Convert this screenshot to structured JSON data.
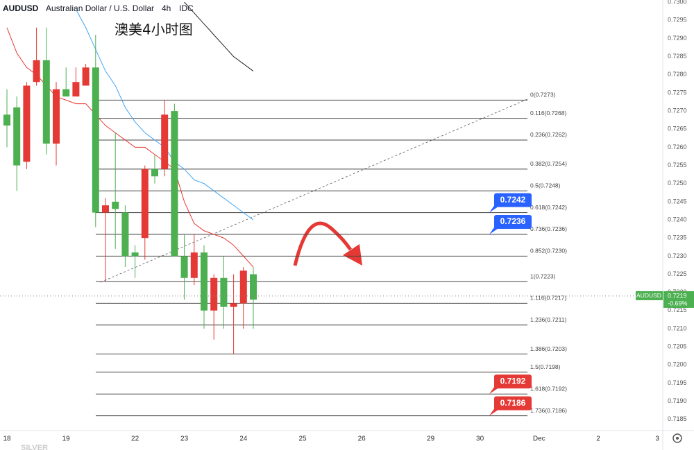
{
  "header": {
    "symbol": "AUDUSD",
    "name": "Australian Dollar / U.S. Dollar",
    "interval": "4h",
    "source": "IDC"
  },
  "watermark": "SILVER",
  "chart_data": {
    "type": "candlestick",
    "title": "澳美4小时图",
    "categories": [
      "18",
      null,
      null,
      null,
      null,
      null,
      "19",
      null,
      null,
      null,
      null,
      null,
      null,
      "22",
      null,
      null,
      null,
      null,
      "23",
      null,
      null,
      null,
      null,
      null,
      "24",
      null,
      null,
      null,
      null,
      null,
      "25",
      null,
      null,
      null,
      null,
      null,
      "26",
      null,
      null,
      null,
      null,
      null,
      null,
      "29",
      null,
      null,
      null,
      null,
      "30",
      null,
      null,
      null,
      null,
      null,
      "Dec",
      null,
      null,
      null,
      null,
      null,
      "2",
      null,
      null,
      null,
      null,
      null,
      "3"
    ],
    "open": [
      0.7269,
      0.7271,
      0.7256,
      0.7278,
      0.7284,
      0.7261,
      0.7276,
      0.7274,
      0.7277,
      0.7282,
      0.7242,
      0.7245,
      0.7242,
      0.7231,
      0.7235,
      0.7254,
      0.7254,
      0.727,
      0.723,
      0.7224,
      0.7231,
      0.7215,
      0.7224,
      0.7216,
      0.7217,
      0.7225,
      null,
      null,
      null,
      null,
      null,
      null,
      null,
      null,
      null,
      null,
      null,
      null,
      null,
      null,
      null,
      null,
      null,
      null,
      null,
      null,
      null,
      null,
      null,
      null,
      null,
      null,
      null,
      null,
      null,
      null,
      null,
      null,
      null,
      null,
      null,
      null,
      null,
      null,
      null,
      null,
      null
    ],
    "high": [
      0.7276,
      0.7274,
      0.7278,
      0.7293,
      0.7293,
      0.7278,
      0.7282,
      0.7282,
      0.7283,
      0.7291,
      0.7246,
      0.7264,
      0.7244,
      0.7233,
      0.7255,
      0.7258,
      0.7273,
      0.7272,
      0.7236,
      0.7236,
      0.7233,
      0.7225,
      0.723,
      0.7225,
      0.7227,
      0.7227,
      null,
      null,
      null,
      null,
      null,
      null,
      null,
      null,
      null,
      null,
      null,
      null,
      null,
      null,
      null,
      null,
      null,
      null,
      null,
      null,
      null,
      null,
      null,
      null,
      null,
      null,
      null,
      null,
      null,
      null,
      null,
      null,
      null,
      null,
      null,
      null,
      null,
      null,
      null,
      null,
      null
    ],
    "low": [
      0.726,
      0.7248,
      0.7254,
      0.7277,
      0.7258,
      0.7255,
      0.7274,
      0.7274,
      0.7277,
      0.7238,
      0.7223,
      0.7232,
      0.7227,
      0.7224,
      0.7229,
      0.725,
      0.7252,
      0.723,
      0.7218,
      0.7222,
      0.721,
      0.7207,
      0.721,
      0.7203,
      0.721,
      0.721,
      null,
      null,
      null,
      null,
      null,
      null,
      null,
      null,
      null,
      null,
      null,
      null,
      null,
      null,
      null,
      null,
      null,
      null,
      null,
      null,
      null,
      null,
      null,
      null,
      null,
      null,
      null,
      null,
      null,
      null,
      null,
      null,
      null,
      null,
      null,
      null,
      null,
      null,
      null,
      null,
      null
    ],
    "close": [
      0.7266,
      0.7255,
      0.7277,
      0.7284,
      0.7261,
      0.7276,
      0.7274,
      0.7278,
      0.7282,
      0.7242,
      0.7244,
      0.7243,
      0.723,
      0.723,
      0.7254,
      0.7252,
      0.7269,
      0.723,
      0.7224,
      0.7231,
      0.7215,
      0.7224,
      0.7216,
      0.7217,
      0.7226,
      0.7218,
      null,
      null,
      null,
      null,
      null,
      null,
      null,
      null,
      null,
      null,
      null,
      null,
      null,
      null,
      null,
      null,
      null,
      null,
      null,
      null,
      null,
      null,
      null,
      null,
      null,
      null,
      null,
      null,
      null,
      null,
      null,
      null,
      null,
      null,
      null,
      null,
      null,
      null,
      null,
      null,
      null
    ],
    "up_color": "#e53935",
    "down_color": "#4caf50",
    "series": [
      {
        "color": "#e53935",
        "values": [
          0.7293,
          0.7286,
          0.7282,
          0.728,
          0.7277,
          0.7274,
          0.7273,
          0.7272,
          0.7272,
          0.7269,
          0.7266,
          0.7264,
          0.7262,
          0.726,
          0.726,
          0.7258,
          0.7256,
          0.7254,
          0.7245,
          0.7239,
          0.7237,
          0.7236,
          0.7235,
          0.7233,
          0.723,
          0.7227,
          null,
          null,
          null,
          null,
          null,
          null,
          null,
          null,
          null,
          null,
          null,
          null,
          null,
          null,
          null,
          null,
          null,
          null,
          null,
          null,
          null,
          null,
          null,
          null,
          null,
          null,
          null,
          null,
          null,
          null,
          null,
          null,
          null,
          null,
          null,
          null,
          null,
          null,
          null,
          null,
          null
        ]
      },
      {
        "color": "#42a5f5",
        "values": [
          null,
          null,
          null,
          null,
          null,
          null,
          null,
          0.7298,
          0.7293,
          0.7287,
          0.7281,
          0.7277,
          0.7271,
          0.7267,
          0.7264,
          0.7262,
          0.726,
          0.7256,
          0.7254,
          0.7251,
          0.725,
          0.7248,
          0.7246,
          0.7244,
          0.7242,
          0.724,
          null,
          null,
          null,
          null,
          null,
          null,
          null,
          null,
          null,
          null,
          null,
          null,
          null,
          null,
          null,
          null,
          null,
          null,
          null,
          null,
          null,
          null,
          null,
          null,
          null,
          null,
          null,
          null,
          null,
          null,
          null,
          null,
          null,
          null,
          null,
          null,
          null,
          null,
          null,
          null,
          null
        ]
      },
      {
        "color": "#222222",
        "values": [
          null,
          null,
          null,
          null,
          null,
          null,
          null,
          null,
          null,
          null,
          null,
          null,
          null,
          null,
          null,
          null,
          null,
          null,
          0.73,
          0.7297,
          0.7294,
          0.7291,
          0.7288,
          0.7285,
          0.7283,
          0.7281,
          null,
          null,
          null,
          null,
          null,
          null,
          null,
          null,
          null,
          null,
          null,
          null,
          null,
          null,
          null,
          null,
          null,
          null,
          null,
          null,
          null,
          null,
          null,
          null,
          null,
          null,
          null,
          null,
          null,
          null,
          null,
          null,
          null,
          null,
          null,
          null,
          null,
          null,
          null,
          null,
          null
        ]
      }
    ],
    "fib_levels": [
      {
        "label": "0(0.7273)",
        "value": 0.7273
      },
      {
        "label": "0.116(0.7268)",
        "value": 0.7268
      },
      {
        "label": "0.236(0.7262)",
        "value": 0.7262
      },
      {
        "label": "0.382(0.7254)",
        "value": 0.7254
      },
      {
        "label": "0.5(0.7248)",
        "value": 0.7248
      },
      {
        "label": "0.618(0.7242)",
        "value": 0.7242
      },
      {
        "label": "0.736(0.7236)",
        "value": 0.7236
      },
      {
        "label": "0.852(0.7230)",
        "value": 0.723
      },
      {
        "label": "1(0.7223)",
        "value": 0.7223
      },
      {
        "label": "1.116(0.7217)",
        "value": 0.7217
      },
      {
        "label": "1.236(0.7211)",
        "value": 0.7211
      },
      {
        "label": "1.386(0.7203)",
        "value": 0.7203
      },
      {
        "label": "1.5(0.7198)",
        "value": 0.7198
      },
      {
        "label": "1.618(0.7192)",
        "value": 0.7192
      },
      {
        "label": "1.736(0.7186)",
        "value": 0.7186
      }
    ],
    "callouts": [
      {
        "value": 0.7242,
        "color": "#2962ff"
      },
      {
        "value": 0.7236,
        "color": "#2962ff"
      },
      {
        "value": 0.7192,
        "color": "#e53935"
      },
      {
        "value": 0.7186,
        "color": "#e53935"
      }
    ],
    "last_price": {
      "symbol": "AUDUSD",
      "value": 0.7219,
      "change": "-0.69%",
      "color": "#4caf50"
    },
    "ylim": [
      0.71821,
      0.73006
    ],
    "yticks": [
      0.7185,
      {
        "value": 0.719,
        "label": "0.7190"
      },
      0.7195,
      {
        "value": 0.72,
        "label": "0.7200"
      },
      0.7205,
      {
        "value": 0.721,
        "label": "0.7210"
      },
      0.7215,
      {
        "value": 0.722,
        "label": "0.7220"
      },
      0.7225,
      {
        "value": 0.723,
        "label": "0.7230"
      },
      0.7235,
      {
        "value": 0.724,
        "label": "0.7240"
      },
      0.7245,
      {
        "value": 0.725,
        "label": "0.7250"
      },
      0.7255,
      {
        "value": 0.726,
        "label": "0.7260"
      },
      0.7265,
      {
        "value": 0.727,
        "label": "0.7270"
      },
      0.7275,
      {
        "value": 0.728,
        "label": "0.7280"
      },
      0.7285,
      {
        "value": 0.729,
        "label": "0.7290"
      },
      0.7295,
      {
        "value": 0.73,
        "label": "0.7300"
      }
    ],
    "grid": false
  }
}
